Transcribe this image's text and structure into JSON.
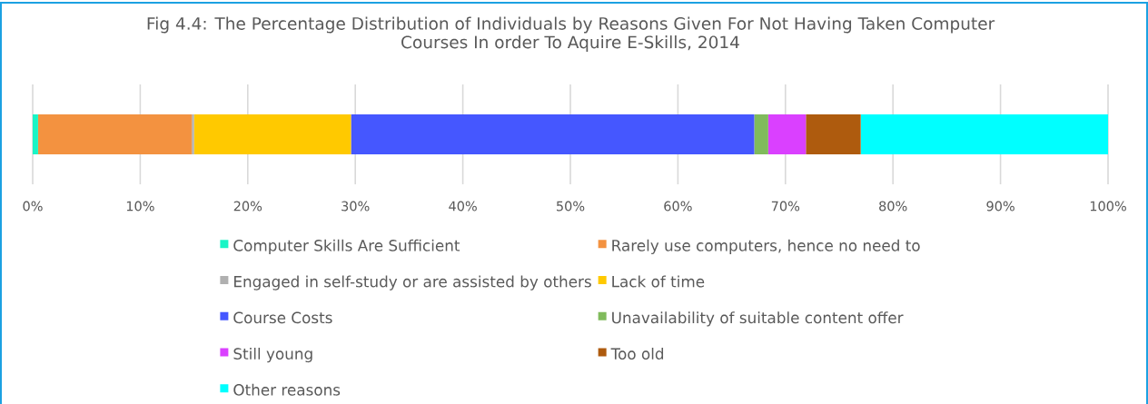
{
  "chart_data": {
    "type": "bar",
    "orientation": "horizontal",
    "stacked": true,
    "title": "Fig 4.4: The Percentage Distribution of Individuals by Reasons Given For Not Having Taken Computer Courses In order To Aquire E-Skills, 2014",
    "categories": [
      null
    ],
    "series": [
      {
        "name": "Computer Skills Are Sufficient",
        "color": "#19f5c6",
        "values": [
          0.5
        ]
      },
      {
        "name": "Rarely use computers, hence no need to",
        "color": "#f39240",
        "values": [
          14.3
        ]
      },
      {
        "name": "Engaged in self-study or are assisted by others",
        "color": "#b0b0b0",
        "values": [
          0.2
        ]
      },
      {
        "name": "Lack of time",
        "color": "#ffc900",
        "values": [
          14.6
        ]
      },
      {
        "name": "Course Costs",
        "color": "#4557ff",
        "values": [
          37.5
        ]
      },
      {
        "name": "Unavailability of suitable content offer",
        "color": "#80bb5c",
        "values": [
          1.3
        ]
      },
      {
        "name": "Still young",
        "color": "#da40ff",
        "values": [
          3.5
        ]
      },
      {
        "name": "Too old",
        "color": "#ae5b0e",
        "values": [
          5.1
        ]
      },
      {
        "name": "Other reasons",
        "color": "#00ffff",
        "values": [
          23.0
        ]
      }
    ],
    "xlim": [
      0,
      100
    ],
    "xticks": [
      {
        "value": 0,
        "label": "0%"
      },
      {
        "value": 10,
        "label": "10%"
      },
      {
        "value": 20,
        "label": "20%"
      },
      {
        "value": 30,
        "label": "30%"
      },
      {
        "value": 40,
        "label": "40%"
      },
      {
        "value": 50,
        "label": "50%"
      },
      {
        "value": 60,
        "label": "60%"
      },
      {
        "value": 70,
        "label": "70%"
      },
      {
        "value": 80,
        "label": "80%"
      },
      {
        "value": 90,
        "label": "90%"
      },
      {
        "value": 100,
        "label": "100%"
      }
    ],
    "grid": "x",
    "legend": "bottom"
  }
}
